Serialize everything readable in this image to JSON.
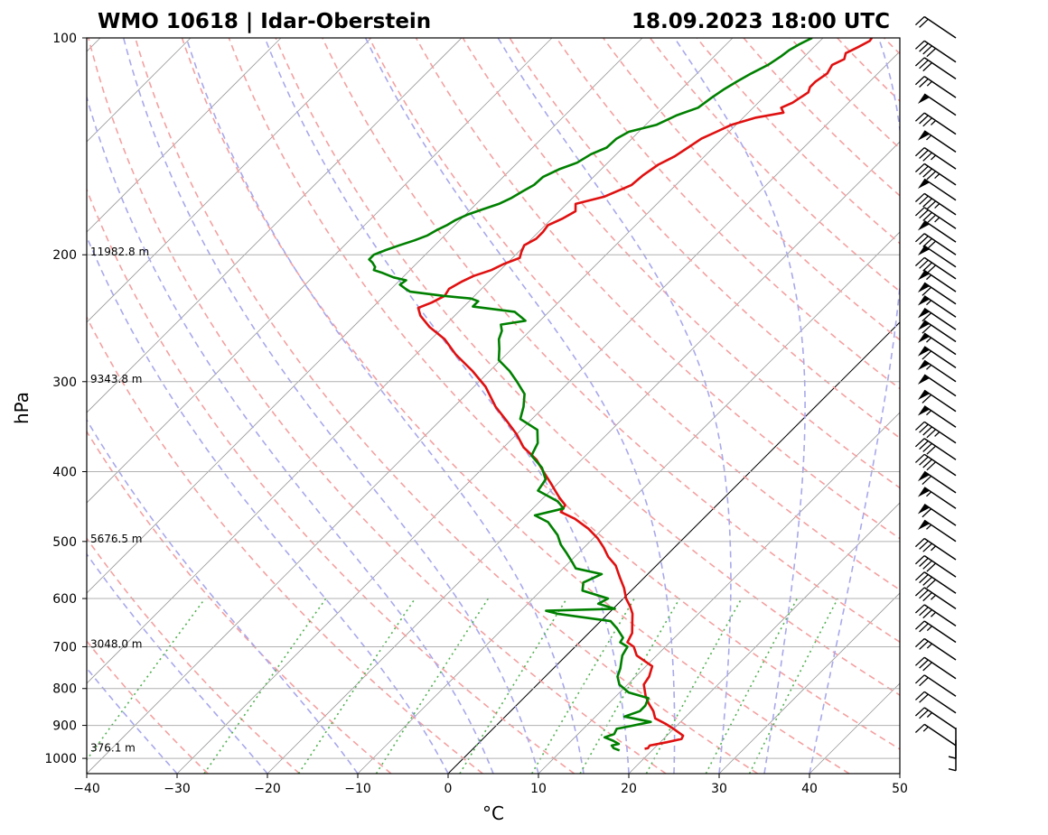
{
  "chart_data": {
    "type": "line",
    "title_left": "WMO 10618 | Idar-Oberstein",
    "title_right": "18.09.2023 18:00 UTC",
    "xlabel": "°C",
    "ylabel": "hPa",
    "xlim": [
      -40,
      50
    ],
    "ylim": [
      1050,
      100
    ],
    "y_scale": "log",
    "skew": "skew-T log-p",
    "x_ticks": [
      "−40",
      "−30",
      "−20",
      "−10",
      "0",
      "10",
      "20",
      "30",
      "40",
      "50"
    ],
    "x_tick_values": [
      -40,
      -30,
      -20,
      -10,
      0,
      10,
      20,
      30,
      40,
      50
    ],
    "y_ticks": [
      "100",
      "200",
      "300",
      "400",
      "500",
      "600",
      "700",
      "800",
      "900",
      "1000"
    ],
    "y_tick_values": [
      100,
      200,
      300,
      400,
      500,
      600,
      700,
      800,
      900,
      1000
    ],
    "height_labels": [
      {
        "p": 200,
        "text": "11982.8 m"
      },
      {
        "p": 300,
        "text": "9343.8 m"
      },
      {
        "p": 500,
        "text": "5676.5 m"
      },
      {
        "p": 700,
        "text": "3048.0 m"
      },
      {
        "p": 975,
        "text": "376.1 m"
      }
    ],
    "grid": true,
    "colors": {
      "temperature": "#e01010",
      "dewpoint": "#008000",
      "dry_adiabat": "#f4a0a0",
      "moist_adiabat": "#a8a8ec",
      "mixing_ratio": "#50b050",
      "isotherm": "#999999",
      "zero_isotherm": "#000000"
    },
    "series": [
      {
        "name": "temperature",
        "pressure": [
          970,
          968,
          960,
          950,
          940,
          930,
          910,
          895,
          880,
          860,
          840,
          820,
          790,
          770,
          745,
          720,
          700,
          690,
          670,
          645,
          630,
          615,
          600,
          580,
          560,
          540,
          525,
          510,
          495,
          480,
          465,
          455,
          445,
          435,
          425,
          415,
          400,
          385,
          370,
          355,
          340,
          325,
          305,
          290,
          275,
          262,
          252,
          243,
          237,
          233,
          228,
          223,
          218,
          214,
          210,
          206,
          202,
          198,
          194,
          190,
          186,
          182,
          178,
          174,
          170,
          166,
          160,
          155,
          150,
          146,
          142,
          138,
          135,
          132,
          129,
          127,
          125,
          123,
          121,
          119,
          117,
          115,
          112,
          109,
          107,
          105,
          103,
          101,
          100
        ],
        "temp": [
          19.0,
          19.3,
          19.2,
          20.7,
          22.0,
          21.8,
          20.0,
          18.5,
          16.8,
          15.8,
          14.5,
          13.3,
          11.8,
          11.5,
          10.7,
          7.8,
          6.5,
          5.3,
          4.8,
          3.5,
          2.7,
          1.6,
          0.3,
          -1.1,
          -2.8,
          -4.5,
          -6.3,
          -7.8,
          -9.5,
          -11.6,
          -14.2,
          -16.5,
          -16.8,
          -18.2,
          -19.5,
          -20.8,
          -22.9,
          -25.0,
          -27.8,
          -30.0,
          -32.6,
          -35.4,
          -38.7,
          -41.9,
          -45.6,
          -48.5,
          -51.5,
          -53.8,
          -54.9,
          -54.0,
          -53.3,
          -53.6,
          -53.0,
          -52.3,
          -51.0,
          -50.3,
          -49.2,
          -49.7,
          -50.1,
          -49.5,
          -49.5,
          -49.7,
          -48.8,
          -48.2,
          -49.0,
          -46.6,
          -44.9,
          -44.7,
          -44.2,
          -43.3,
          -42.8,
          -42.3,
          -41.4,
          -40.5,
          -38.6,
          -36.1,
          -36.9,
          -36.2,
          -35.9,
          -35.6,
          -36.0,
          -36.0,
          -35.6,
          -36.0,
          -35.3,
          -35.8,
          -35.1,
          -34.5,
          -34.6
        ]
      },
      {
        "name": "dewpoint",
        "pressure": [
          975,
          968,
          960,
          955,
          945,
          935,
          925,
          910,
          900,
          890,
          875,
          860,
          845,
          825,
          810,
          790,
          770,
          750,
          720,
          700,
          690,
          680,
          660,
          645,
          630,
          624,
          620,
          610,
          600,
          585,
          570,
          555,
          545,
          535,
          520,
          505,
          490,
          470,
          460,
          450,
          440,
          425,
          410,
          395,
          380,
          365,
          350,
          338,
          325,
          312,
          300,
          290,
          280,
          270,
          262,
          255,
          250,
          247,
          244,
          240,
          236,
          232,
          230,
          228,
          225,
          223,
          220,
          217,
          215,
          212,
          210,
          208,
          205,
          203,
          200,
          197,
          194,
          191,
          188,
          185,
          182,
          179,
          176,
          173,
          170,
          167,
          163,
          160,
          156,
          152,
          149,
          145,
          142,
          138,
          135,
          132,
          128,
          125,
          121,
          118,
          115,
          112,
          109,
          106,
          104,
          102,
          100
        ],
        "temp": [
          16.4,
          15.5,
          15.0,
          15.6,
          14.6,
          13.3,
          14.0,
          13.7,
          15.2,
          16.7,
          13.2,
          14.3,
          14.3,
          13.8,
          11.0,
          9.1,
          8.0,
          7.4,
          6.2,
          5.8,
          4.5,
          4.3,
          2.6,
          1.1,
          -5.6,
          -7.2,
          0.2,
          -2.2,
          -1.7,
          -5.4,
          -6.2,
          -5.1,
          -8.6,
          -9.6,
          -11.2,
          -12.9,
          -14.3,
          -16.8,
          -19.0,
          -16.6,
          -18.0,
          -21.4,
          -21.8,
          -23.5,
          -26.0,
          -26.7,
          -28.2,
          -31.3,
          -32.3,
          -33.6,
          -35.8,
          -37.8,
          -40.2,
          -41.4,
          -42.5,
          -43.1,
          -43.9,
          -41.6,
          -42.5,
          -43.8,
          -49.0,
          -49.0,
          -50.1,
          -53.5,
          -57.6,
          -58.4,
          -59.5,
          -59.3,
          -61.0,
          -62.7,
          -64.0,
          -64.2,
          -65.0,
          -65.7,
          -65.7,
          -64.9,
          -63.9,
          -62.8,
          -61.9,
          -61.5,
          -60.9,
          -60.5,
          -59.8,
          -58.7,
          -57.5,
          -56.8,
          -56.2,
          -55.7,
          -55.6,
          -54.6,
          -53.4,
          -52.8,
          -51.8,
          -51.7,
          -51.1,
          -48.8,
          -47.6,
          -46.1,
          -45.7,
          -45.3,
          -44.7,
          -44.0,
          -43.1,
          -42.6,
          -42.4,
          -41.9,
          -41.2
        ]
      }
    ],
    "wind_barbs": {
      "pressure": [
        100,
        108,
        114,
        121,
        128,
        136,
        144,
        152,
        160,
        168,
        176,
        184,
        192,
        200,
        208,
        216,
        225,
        234,
        244,
        254,
        264,
        275,
        287,
        300,
        314,
        330,
        347,
        365,
        385,
        405,
        428,
        450,
        475,
        500,
        530,
        560,
        590,
        620,
        655,
        690,
        730,
        775,
        820,
        865,
        910,
        960,
        1000,
        1040
      ],
      "speed_kt": [
        20,
        40,
        30,
        25,
        50,
        35,
        55,
        35,
        45,
        50,
        45,
        45,
        50,
        40,
        50,
        40,
        55,
        60,
        55,
        60,
        60,
        55,
        60,
        55,
        50,
        60,
        55,
        45,
        40,
        40,
        60,
        55,
        60,
        55,
        35,
        40,
        40,
        35,
        35,
        25,
        25,
        30,
        20,
        20,
        25,
        15,
        5,
        5
      ]
    }
  }
}
